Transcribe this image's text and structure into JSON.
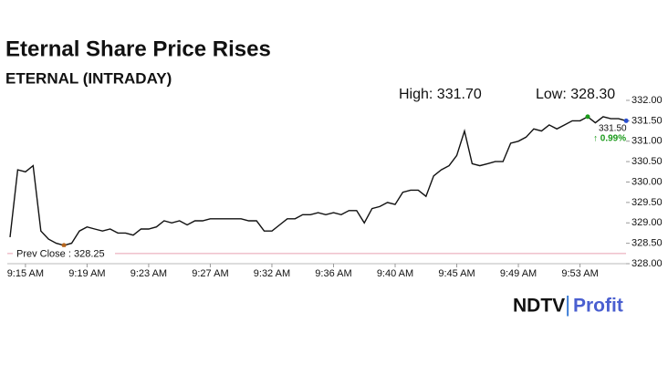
{
  "chart_data": {
    "type": "line",
    "title": "Eternal Share Price Rises",
    "subtitle": "ETERNAL (INTRADAY)",
    "high_label": "High: 331.70",
    "low_label": "Low: 328.30",
    "prev_close": 328.25,
    "prev_close_label": "Prev Close : 328.25",
    "last_price_label": "331.50",
    "change_label": "↑ 0.99%",
    "categories": [
      null,
      null,
      "9:15 AM",
      null,
      null,
      null,
      null,
      null,
      null,
      null,
      "9:19 AM",
      null,
      null,
      null,
      null,
      null,
      null,
      null,
      "9:23 AM",
      null,
      null,
      null,
      null,
      null,
      null,
      null,
      "9:27 AM",
      null,
      null,
      null,
      null,
      null,
      null,
      null,
      "9:32 AM",
      null,
      null,
      null,
      null,
      null,
      null,
      null,
      "9:36 AM",
      null,
      null,
      null,
      null,
      null,
      null,
      null,
      "9:40 AM",
      null,
      null,
      null,
      null,
      null,
      null,
      null,
      "9:45 AM",
      null,
      null,
      null,
      null,
      null,
      null,
      null,
      "9:49 AM",
      null,
      null,
      null,
      null,
      null,
      null,
      null,
      "9:53 AM",
      null,
      null,
      null,
      null,
      null,
      null
    ],
    "series": [
      {
        "name": "ETERNAL",
        "color": "#111111",
        "values": [
          328.65,
          330.3,
          330.25,
          330.4,
          328.8,
          328.6,
          328.5,
          328.45,
          328.5,
          328.8,
          328.9,
          328.85,
          328.8,
          328.85,
          328.75,
          328.75,
          328.7,
          328.85,
          328.85,
          328.9,
          329.05,
          329.0,
          329.05,
          328.95,
          329.05,
          329.05,
          329.1,
          329.1,
          329.1,
          329.1,
          329.1,
          329.05,
          329.05,
          328.8,
          328.8,
          328.95,
          329.1,
          329.1,
          329.2,
          329.2,
          329.25,
          329.2,
          329.25,
          329.2,
          329.3,
          329.3,
          329.0,
          329.35,
          329.4,
          329.5,
          329.45,
          329.75,
          329.8,
          329.8,
          329.65,
          330.15,
          330.3,
          330.4,
          330.65,
          331.25,
          330.45,
          330.4,
          330.45,
          330.5,
          330.5,
          330.95,
          331.0,
          331.1,
          331.3,
          331.25,
          331.4,
          331.3,
          331.4,
          331.5,
          331.5,
          331.6,
          331.45,
          331.6,
          331.55,
          331.55,
          331.5
        ]
      }
    ],
    "ylim": [
      328,
      332
    ],
    "yticks": [
      {
        "value": 328,
        "label": "328.00"
      },
      {
        "value": 328.5,
        "label": "328.50"
      },
      {
        "value": 329,
        "label": "329.00"
      },
      {
        "value": 329.5,
        "label": "329.50"
      },
      {
        "value": 330,
        "label": "330.00"
      },
      {
        "value": 330.5,
        "label": "330.50"
      },
      {
        "value": 331,
        "label": "331.00"
      },
      {
        "value": 331.5,
        "label": "331.50"
      },
      {
        "value": 332,
        "label": "332.00"
      }
    ],
    "prev_close_color": "#e8a0b0",
    "logo": {
      "brand": "NDTV",
      "separator": "|",
      "product": "Profit"
    }
  }
}
